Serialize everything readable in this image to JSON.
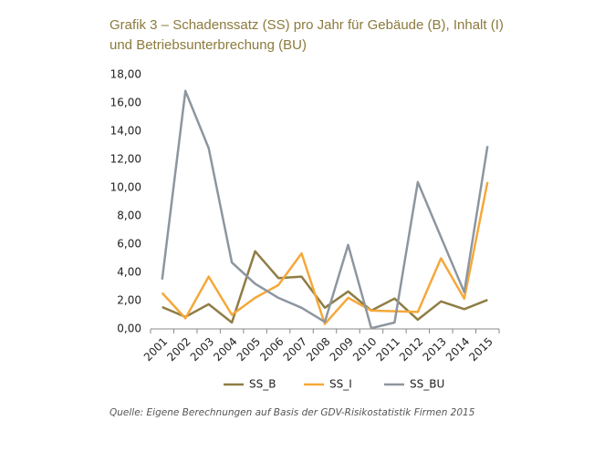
{
  "chart_data": {
    "type": "line",
    "title": [
      "Grafik 3 – Schadenssatz (SS) pro Jahr für Gebäude (B), Inhalt (I)",
      "und Betriebsunterbrechung (BU)"
    ],
    "categories": [
      "2001",
      "2002",
      "2003",
      "2004",
      "2005",
      "2006",
      "2007",
      "2008",
      "2009",
      "2010",
      "2011",
      "2012",
      "2013",
      "2014",
      "2015"
    ],
    "series": [
      {
        "name": "SS_B",
        "color": "#8f7d45",
        "values": [
          1.55,
          0.85,
          1.75,
          0.45,
          5.5,
          3.6,
          3.7,
          1.5,
          2.65,
          1.3,
          2.15,
          0.65,
          1.95,
          1.4,
          2.05
        ]
      },
      {
        "name": "SS_I",
        "color": "#f5a83a",
        "values": [
          2.55,
          0.75,
          3.7,
          1.0,
          2.2,
          3.1,
          5.35,
          0.35,
          2.2,
          1.3,
          1.25,
          1.2,
          5.0,
          2.15,
          10.4
        ]
      },
      {
        "name": "SS_BU",
        "color": "#8d969f",
        "values": [
          3.5,
          16.85,
          12.8,
          4.7,
          3.2,
          2.2,
          1.5,
          0.5,
          5.95,
          0.05,
          0.45,
          10.4,
          6.5,
          2.6,
          12.95
        ]
      }
    ],
    "ylim": [
      0,
      18
    ],
    "yticks": [
      {
        "value": 0,
        "label": "0,00"
      },
      {
        "value": 2,
        "label": "2,00"
      },
      {
        "value": 4,
        "label": "4,00"
      },
      {
        "value": 6,
        "label": "6,00"
      },
      {
        "value": 8,
        "label": "8,00"
      },
      {
        "value": 10,
        "label": "10,00"
      },
      {
        "value": 12,
        "label": "12,00"
      },
      {
        "value": 14,
        "label": "14,00"
      },
      {
        "value": 16,
        "label": "16,00"
      },
      {
        "value": 18,
        "label": "18,00"
      }
    ],
    "legend": "bottom",
    "source": "Quelle: Eigene Berechnungen auf Basis der GDV-Risikostatistik Firmen 2015"
  }
}
